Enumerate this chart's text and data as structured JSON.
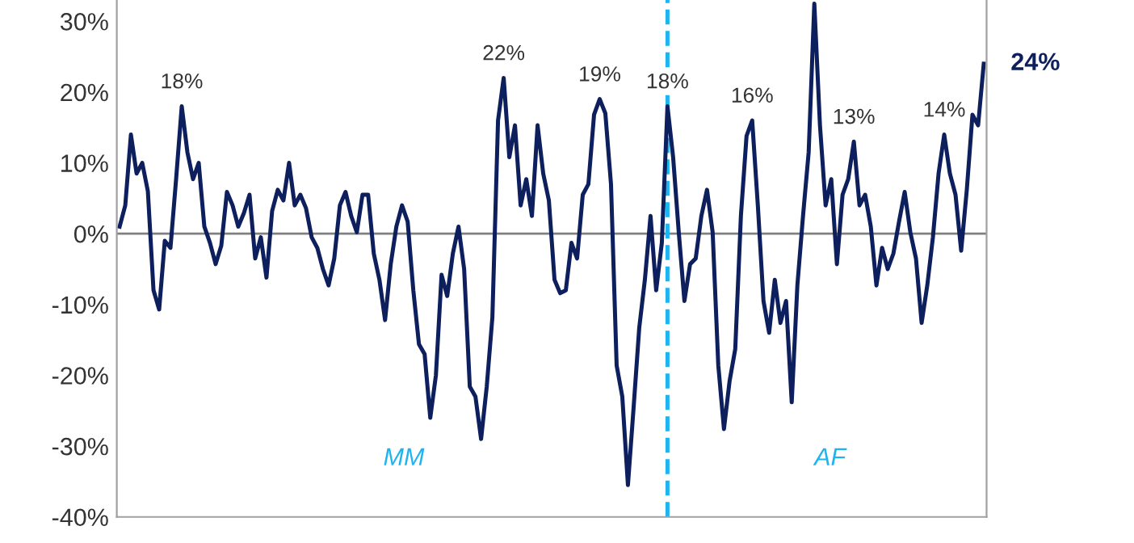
{
  "chart_data": {
    "type": "line",
    "categories": [
      null,
      null,
      null,
      null,
      null,
      null,
      null,
      null,
      null,
      null,
      null,
      null,
      null,
      null,
      null,
      null,
      null,
      null,
      null,
      null,
      null,
      null,
      null,
      null,
      null,
      null,
      null,
      null,
      null,
      null,
      null,
      null,
      null,
      null,
      null,
      null,
      null,
      null,
      null,
      null,
      null,
      null,
      null,
      null,
      null,
      null,
      null,
      null,
      null,
      null,
      null,
      null,
      null,
      null,
      null,
      null,
      null,
      null,
      null,
      null,
      null,
      null,
      null,
      null,
      null,
      null,
      null,
      null,
      null,
      null,
      null,
      null,
      null,
      null,
      null,
      null,
      null,
      null,
      null,
      null,
      null,
      null,
      null,
      null,
      null,
      null,
      null,
      null,
      null,
      null,
      null,
      null,
      null,
      null,
      null,
      null,
      null,
      null,
      null,
      null,
      null,
      null,
      null,
      null,
      null,
      null,
      null,
      null,
      null,
      null,
      null,
      null,
      null,
      null,
      null,
      null,
      null,
      null,
      null,
      null,
      null,
      null,
      null,
      null,
      null,
      null,
      null,
      null,
      null,
      null,
      null,
      null,
      null,
      null,
      null,
      null,
      null,
      null,
      null,
      null,
      null,
      null,
      null,
      null,
      null,
      null,
      null,
      null,
      null,
      null,
      null,
      null,
      null,
      null
    ],
    "series": [
      {
        "color": "#0d1f5c",
        "values": [
          1,
          4,
          14,
          8.5,
          10,
          6,
          -8,
          -10.7,
          -1,
          -2,
          7.7,
          18,
          11.5,
          7.7,
          10,
          1,
          -1.3,
          -4.3,
          -1.7,
          5.9,
          4,
          1,
          2.9,
          5.5,
          -3.5,
          -0.5,
          -6.2,
          3.2,
          6.2,
          4.7,
          10,
          4,
          5.5,
          3.6,
          -0.5,
          -2,
          -5,
          -7.3,
          -3.5,
          4,
          5.9,
          2.5,
          0.2,
          5.5,
          5.5,
          -2.8,
          -6.5,
          -12.2,
          -4.3,
          1,
          4,
          1.7,
          -8,
          -15.6,
          -17,
          -26,
          -20,
          -5.8,
          -8.8,
          -2.8,
          1,
          -5,
          -21.6,
          -23,
          -29,
          -21.6,
          -11.8,
          16,
          22,
          10.8,
          15.3,
          4,
          7.7,
          2.5,
          15.3,
          8.5,
          4.7,
          -6.5,
          -8.4,
          -8,
          -1.3,
          -3.5,
          5.5,
          7,
          16.8,
          19,
          17,
          7,
          -18.6,
          -23,
          -35.5,
          -24.6,
          -13.3,
          -6.5,
          2.5,
          -8,
          -1.3,
          18,
          10.8,
          0.2,
          -9.5,
          -4.3,
          -3.5,
          2.5,
          6.2,
          0.2,
          -18.6,
          -27.6,
          -20.8,
          -16.3,
          2.5,
          13.8,
          16,
          4,
          -9.5,
          -14,
          -6.5,
          -12.6,
          -9.5,
          -23.8,
          -7.3,
          2.5,
          11.5,
          32.5,
          15.3,
          4,
          7.7,
          -4.3,
          5.5,
          7.7,
          13,
          4,
          5.5,
          1,
          -7.3,
          -2,
          -5,
          -2.8,
          1.7,
          5.9,
          0.2,
          -3.5,
          -12.6,
          -7.3,
          -0.5,
          8.5,
          14,
          8.5,
          5.5,
          -2.4,
          6.2,
          16.8,
          15.3,
          24
        ]
      }
    ],
    "ylim": [
      -40,
      33
    ],
    "yticks": [
      {
        "value": -40,
        "label": "-40%"
      },
      {
        "value": -30,
        "label": "-30%"
      },
      {
        "value": -20,
        "label": "-20%"
      },
      {
        "value": -10,
        "label": "-10%"
      },
      {
        "value": 0,
        "label": "0%"
      },
      {
        "value": 10,
        "label": "10%"
      },
      {
        "value": 20,
        "label": "20%"
      },
      {
        "value": 30,
        "label": "30%"
      }
    ],
    "tick_labels": "y",
    "grid": false,
    "ref_lines": [
      {
        "axis": "y",
        "value": 0,
        "color": "#808080",
        "line_style": "solid"
      }
    ],
    "annotations": [
      {
        "text": "18%",
        "y": 18
      },
      {
        "text": "22%",
        "y": 22
      },
      {
        "text": "19%",
        "y": 19
      },
      {
        "text": "18%",
        "y": 18
      },
      {
        "text": "16%",
        "y": 16
      },
      {
        "text": "13%",
        "y": 13
      },
      {
        "text": "14%",
        "y": 14
      },
      "24%",
      "MM",
      "AF"
    ]
  }
}
